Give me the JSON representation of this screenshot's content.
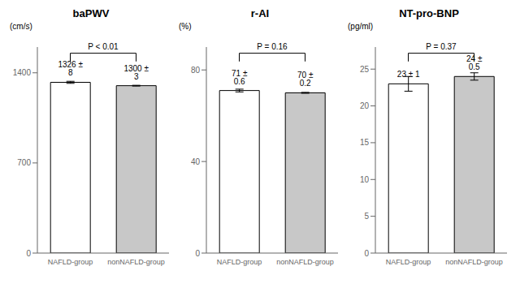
{
  "chart_data": [
    {
      "type": "bar",
      "title": "baPWV",
      "y_label": "(cm/s)",
      "categories": [
        "NAFLD-group",
        "nonNAFLD-group"
      ],
      "values": [
        1326,
        1300
      ],
      "errors": [
        8,
        3
      ],
      "value_labels": [
        "1326 ± 8",
        "1300 ± 3"
      ],
      "data_labels": true,
      "colors": [
        "white",
        "#c8c8c8"
      ],
      "ylim": [
        0,
        1600
      ],
      "yticks": [
        0,
        700,
        1400
      ],
      "annotations": [
        "P < 0.01"
      ],
      "grid": false
    },
    {
      "type": "bar",
      "title": "r-AI",
      "y_label": "(%)",
      "categories": [
        "NAFLD-group",
        "nonNAFLD-group"
      ],
      "values": [
        71,
        70
      ],
      "errors": [
        0.6,
        0.2
      ],
      "value_labels": [
        "71 ± 0.6",
        "70 ± 0.2"
      ],
      "data_labels": true,
      "colors": [
        "white",
        "#c8c8c8"
      ],
      "ylim": [
        0,
        90
      ],
      "yticks": [
        0,
        40,
        80
      ],
      "annotations": [
        "P = 0.16"
      ],
      "grid": false
    },
    {
      "type": "bar",
      "title": "NT-pro-BNP",
      "y_label": "(pg/ml)",
      "categories": [
        "NAFLD-group",
        "nonNAFLD-group"
      ],
      "values": [
        23,
        24
      ],
      "errors": [
        1,
        0.5
      ],
      "value_labels": [
        "23 ± 1",
        "24 ± 0.5"
      ],
      "data_labels": true,
      "colors": [
        "white",
        "#c8c8c8"
      ],
      "ylim": [
        0,
        28
      ],
      "yticks": [
        0,
        5,
        10,
        15,
        20,
        25
      ],
      "annotations": [
        "P = 0.37"
      ],
      "grid": false
    }
  ]
}
